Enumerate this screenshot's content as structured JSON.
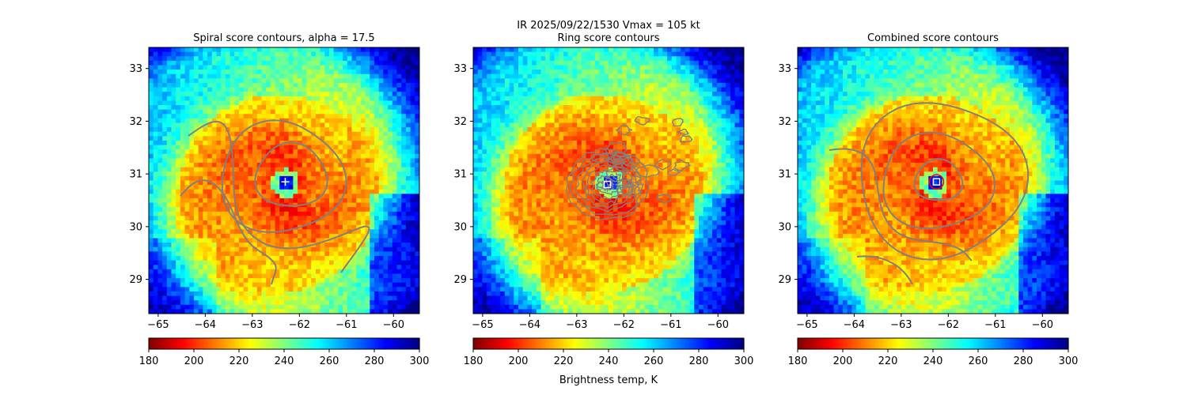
{
  "suptitle_line1": "IR  2025/09/22/1530    Vmax = 105 kt",
  "colorbar_label": "Brightness temp, K",
  "colors": {
    "contour": "#808080",
    "center_marker": "#ffffff",
    "combined_circle": "#ff0000"
  },
  "colormap": {
    "name": "jet_r",
    "vmin": 180,
    "vmax": 300,
    "ticks": [
      "180",
      "200",
      "220",
      "240",
      "260",
      "280",
      "300"
    ]
  },
  "chart_data": [
    {
      "type": "heatmap",
      "title": "Spiral score contours, alpha = 17.5",
      "xlim": [
        -65.2,
        -59.45
      ],
      "ylim": [
        28.35,
        33.4
      ],
      "x_ticks": [
        "−65",
        "−64",
        "−63",
        "−62",
        "−61",
        "−60"
      ],
      "y_ticks": [
        "29",
        "30",
        "31",
        "32",
        "33"
      ],
      "center": [
        -62.3,
        30.85
      ],
      "contour_style": "smooth spiral",
      "marker": "plus"
    },
    {
      "type": "heatmap",
      "title": "Ring score contours",
      "xlim": [
        -65.2,
        -59.45
      ],
      "ylim": [
        28.35,
        33.4
      ],
      "x_ticks": [
        "−65",
        "−64",
        "−63",
        "−62",
        "−61",
        "−60"
      ],
      "y_ticks": [
        "29",
        "30",
        "31",
        "32",
        "33"
      ],
      "center": [
        -62.35,
        30.8
      ],
      "contour_style": "noisy rings",
      "marker": "square"
    },
    {
      "type": "heatmap",
      "title": "Combined score contours",
      "xlim": [
        -65.2,
        -59.45
      ],
      "ylim": [
        28.35,
        33.4
      ],
      "x_ticks": [
        "−65",
        "−64",
        "−63",
        "−62",
        "−61",
        "−60"
      ],
      "y_ticks": [
        "29",
        "30",
        "31",
        "32",
        "33"
      ],
      "center": [
        -62.25,
        30.85
      ],
      "contour_style": "smooth spiral",
      "marker": "square-circle"
    }
  ]
}
